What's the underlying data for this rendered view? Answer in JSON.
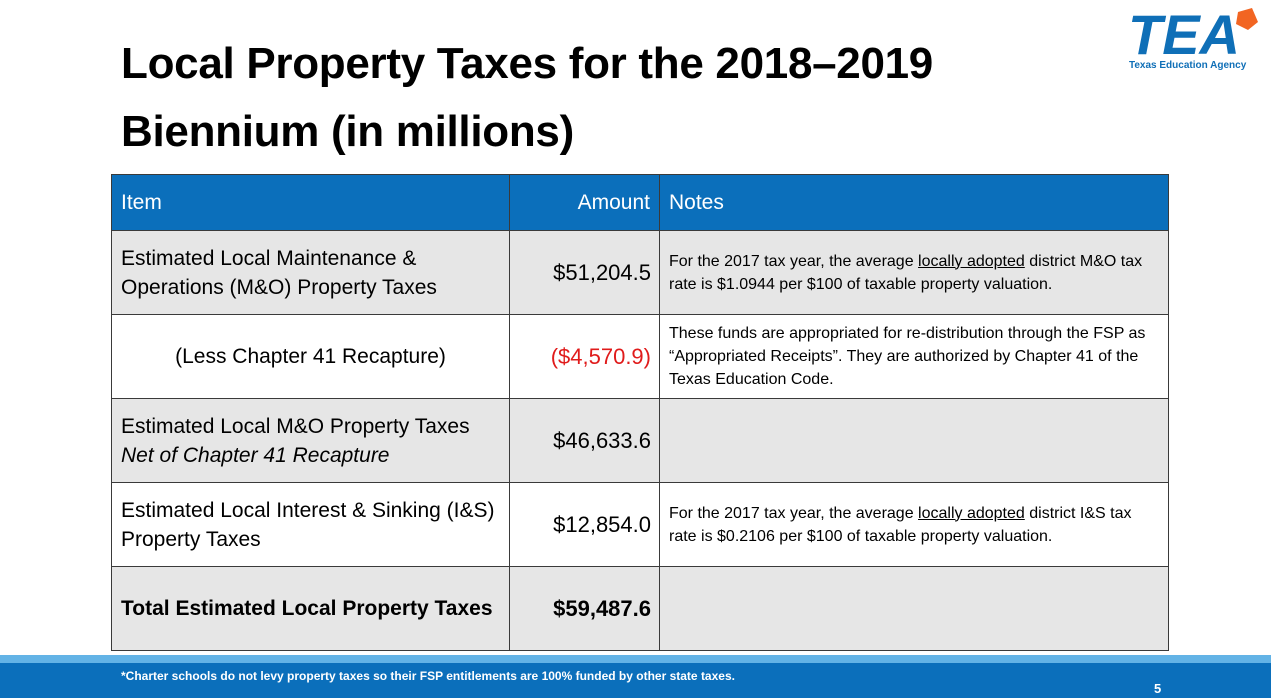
{
  "title": {
    "line1": "Local Property Taxes for the 2018–2019",
    "line2": "Biennium (in millions)"
  },
  "logo": {
    "mark": "TEA",
    "subtitle": "Texas Education Agency",
    "colors": {
      "blue": "#0f6fb7",
      "orange": "#f26522"
    }
  },
  "table": {
    "headers": {
      "item": "Item",
      "amount": "Amount",
      "notes": "Notes"
    },
    "rows": [
      {
        "item": "Estimated Local Maintenance & Operations (M&O) Property Taxes",
        "amount": "$51,204.5",
        "notes_pre": "For the 2017 tax year, the average ",
        "notes_u": "locally adopted",
        "notes_post": " district M&O tax rate is $1.0944 per $100 of taxable property valuation."
      },
      {
        "item": "(Less Chapter 41 Recapture)",
        "amount": "($4,570.9)",
        "notes": "These funds are appropriated for re-distribution through the FSP as “Appropriated Receipts”. They are authorized by Chapter 41 of the Texas Education Code."
      },
      {
        "item": "Estimated Local M&O Property Taxes",
        "item_sub": "Net of Chapter 41 Recapture",
        "amount": "$46,633.6",
        "notes": ""
      },
      {
        "item": "Estimated Local Interest & Sinking (I&S) Property Taxes",
        "amount": "$12,854.0",
        "notes_pre": "For the 2017 tax year, the average ",
        "notes_u": "locally adopted",
        "notes_post": " district I&S tax rate is $0.2106 per $100 of taxable property valuation."
      },
      {
        "item": "Total Estimated Local Property Taxes",
        "amount": "$59,487.6",
        "notes": ""
      }
    ]
  },
  "footer": {
    "note": "*Charter schools do not levy property taxes so their FSP entitlements are 100% funded by other state taxes.",
    "page": "5"
  },
  "colors": {
    "header_blue": "#0b6fbb",
    "row_shade": "#e6e6e6",
    "negative_red": "#e01b1b",
    "footer_stripe": "#63b3e6"
  }
}
